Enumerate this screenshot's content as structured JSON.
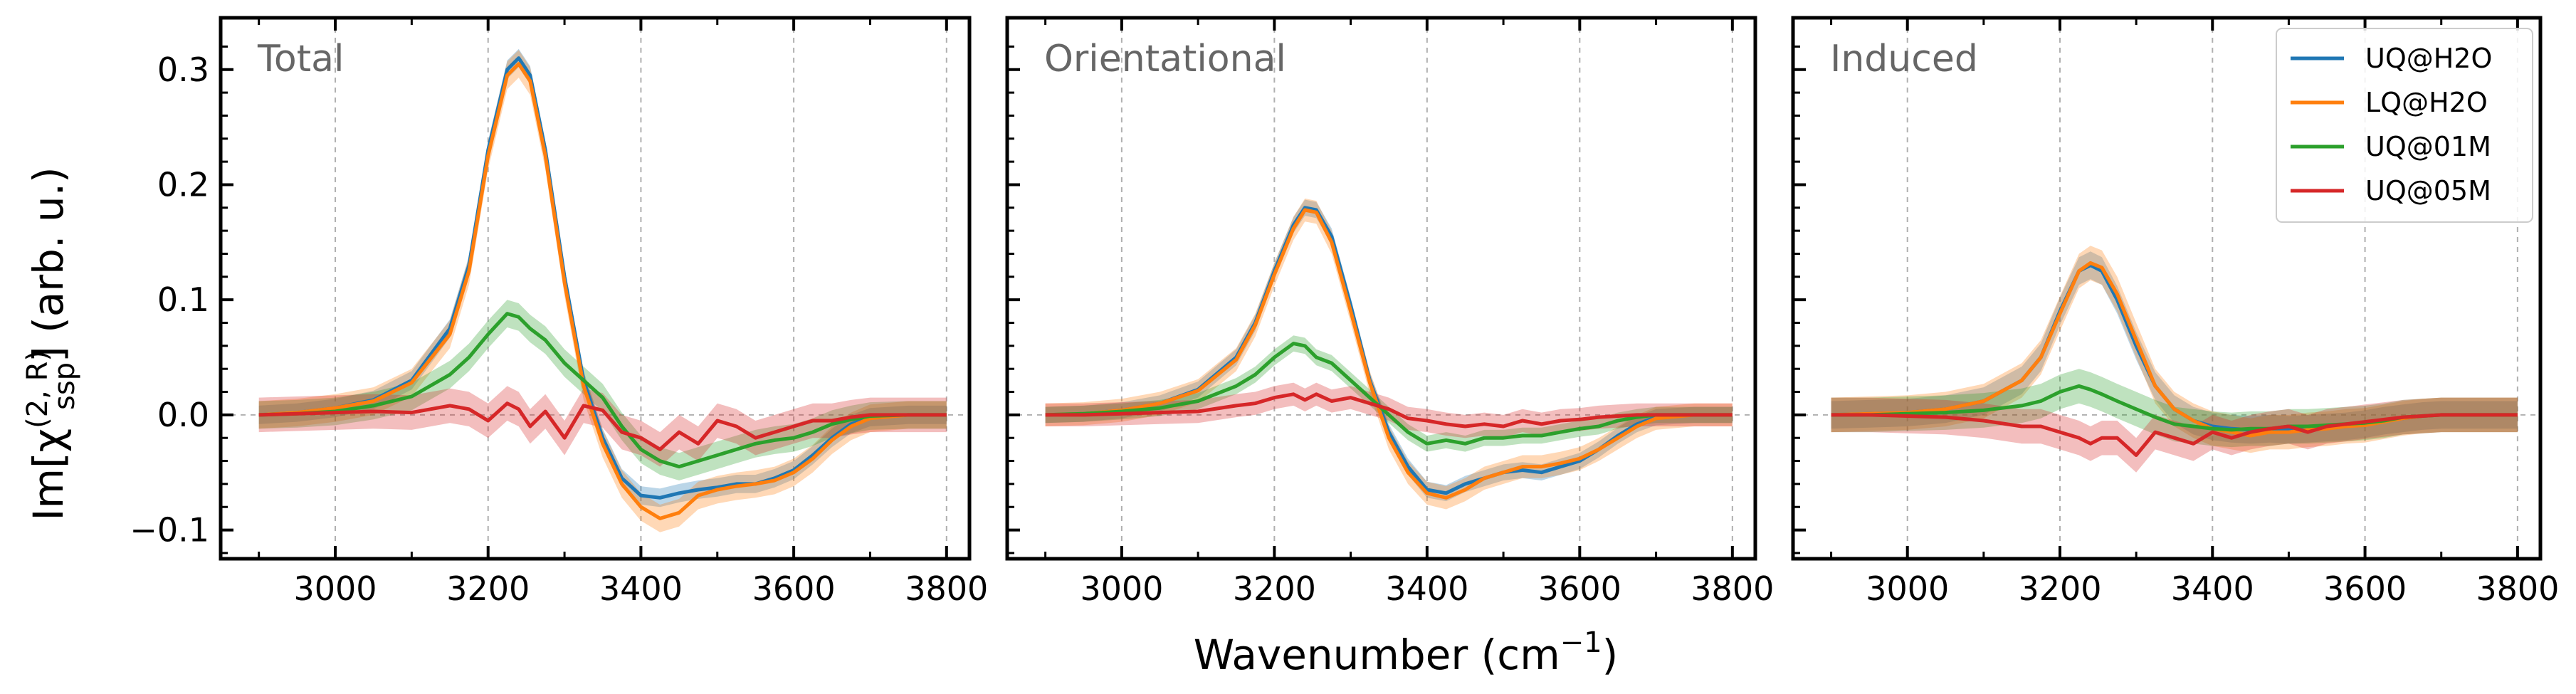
{
  "chart_data": {
    "type": "line",
    "ylabel": "Im[χ(2, R)ssp] (arb. u.)",
    "ylabel_parts": {
      "main": "Im[χ",
      "sup": "(2, R)",
      "sub": "ssp",
      "end": "] (arb. u.)"
    },
    "xlabel": "Wavenumber (cm⁻¹)",
    "xlabel_parts": {
      "main": "Wavenumber (cm",
      "sup": "−1",
      "end": ")"
    },
    "xlim": [
      2850,
      3830
    ],
    "ylim": [
      -0.125,
      0.345
    ],
    "xticks": [
      3000,
      3200,
      3400,
      3600,
      3800
    ],
    "xtick_labels": [
      "3000",
      "3200",
      "3400",
      "3600",
      "3800"
    ],
    "yticks": [
      -0.1,
      0.0,
      0.1,
      0.2,
      0.3
    ],
    "ytick_labels": [
      "−0.1",
      "0.0",
      "0.1",
      "0.2",
      "0.3"
    ],
    "x": [
      2900,
      2950,
      3000,
      3050,
      3100,
      3150,
      3175,
      3200,
      3225,
      3240,
      3255,
      3275,
      3300,
      3325,
      3350,
      3375,
      3400,
      3425,
      3450,
      3475,
      3500,
      3525,
      3550,
      3575,
      3600,
      3625,
      3650,
      3675,
      3700,
      3750,
      3800
    ],
    "legend": {
      "position": "top-right",
      "entries": [
        {
          "label": "UQ@H2O",
          "color": "#1f77b4"
        },
        {
          "label": "LQ@H2O",
          "color": "#ff7f0e"
        },
        {
          "label": "UQ@01M",
          "color": "#2ca02c"
        },
        {
          "label": "UQ@05M",
          "color": "#d62728"
        }
      ]
    },
    "panels": [
      {
        "title": "Total",
        "series": [
          {
            "name": "UQ@H2O",
            "color": "#1f77b4",
            "band": 0.008,
            "values": [
              0,
              0.002,
              0.006,
              0.013,
              0.03,
              0.075,
              0.13,
              0.23,
              0.3,
              0.31,
              0.295,
              0.23,
              0.12,
              0.03,
              -0.02,
              -0.055,
              -0.07,
              -0.072,
              -0.068,
              -0.065,
              -0.063,
              -0.06,
              -0.06,
              -0.055,
              -0.048,
              -0.035,
              -0.02,
              -0.008,
              -0.002,
              0,
              0
            ]
          },
          {
            "name": "LQ@H2O",
            "color": "#ff7f0e",
            "band": 0.012,
            "values": [
              0,
              0.002,
              0.006,
              0.012,
              0.028,
              0.07,
              0.125,
              0.225,
              0.295,
              0.305,
              0.29,
              0.225,
              0.115,
              0.025,
              -0.025,
              -0.06,
              -0.08,
              -0.09,
              -0.085,
              -0.07,
              -0.065,
              -0.062,
              -0.06,
              -0.057,
              -0.05,
              -0.038,
              -0.022,
              -0.01,
              -0.003,
              0,
              0
            ]
          },
          {
            "name": "UQ@01M",
            "color": "#2ca02c",
            "band": 0.012,
            "values": [
              0,
              0.001,
              0.003,
              0.008,
              0.016,
              0.035,
              0.05,
              0.07,
              0.088,
              0.085,
              0.075,
              0.065,
              0.045,
              0.03,
              0.015,
              -0.01,
              -0.03,
              -0.04,
              -0.045,
              -0.04,
              -0.035,
              -0.03,
              -0.025,
              -0.022,
              -0.02,
              -0.015,
              -0.008,
              -0.004,
              -0.001,
              0,
              0
            ]
          },
          {
            "name": "UQ@05M",
            "color": "#d62728",
            "band": 0.015,
            "values": [
              0,
              0.001,
              0.002,
              0.003,
              0.002,
              0.008,
              0.005,
              -0.005,
              0.01,
              0.005,
              -0.01,
              0.003,
              -0.02,
              0.008,
              0.004,
              -0.015,
              -0.02,
              -0.03,
              -0.015,
              -0.025,
              -0.005,
              -0.01,
              -0.02,
              -0.015,
              -0.01,
              -0.005,
              -0.005,
              -0.002,
              0,
              0,
              0
            ]
          }
        ]
      },
      {
        "title": "Orientational",
        "series": [
          {
            "name": "UQ@H2O",
            "color": "#1f77b4",
            "band": 0.007,
            "values": [
              0,
              0.001,
              0.004,
              0.01,
              0.022,
              0.05,
              0.08,
              0.125,
              0.165,
              0.18,
              0.178,
              0.155,
              0.095,
              0.03,
              -0.015,
              -0.045,
              -0.065,
              -0.068,
              -0.06,
              -0.055,
              -0.05,
              -0.048,
              -0.05,
              -0.045,
              -0.04,
              -0.03,
              -0.018,
              -0.008,
              -0.002,
              0,
              0
            ]
          },
          {
            "name": "LQ@H2O",
            "color": "#ff7f0e",
            "band": 0.01,
            "values": [
              0,
              0.001,
              0.004,
              0.01,
              0.021,
              0.048,
              0.078,
              0.122,
              0.162,
              0.178,
              0.176,
              0.15,
              0.09,
              0.028,
              -0.02,
              -0.05,
              -0.068,
              -0.072,
              -0.065,
              -0.055,
              -0.05,
              -0.045,
              -0.045,
              -0.042,
              -0.038,
              -0.03,
              -0.02,
              -0.01,
              -0.003,
              0,
              0
            ]
          },
          {
            "name": "UQ@01M",
            "color": "#2ca02c",
            "band": 0.007,
            "values": [
              0,
              0.001,
              0.003,
              0.006,
              0.012,
              0.025,
              0.035,
              0.05,
              0.062,
              0.06,
              0.05,
              0.045,
              0.03,
              0.015,
              0,
              -0.015,
              -0.025,
              -0.022,
              -0.025,
              -0.02,
              -0.02,
              -0.018,
              -0.018,
              -0.015,
              -0.012,
              -0.01,
              -0.005,
              -0.002,
              0,
              0,
              0
            ]
          },
          {
            "name": "UQ@05M",
            "color": "#d62728",
            "band": 0.01,
            "values": [
              0,
              0,
              0.001,
              0.002,
              0.003,
              0.008,
              0.01,
              0.015,
              0.018,
              0.013,
              0.018,
              0.012,
              0.015,
              0.01,
              0.005,
              -0.003,
              -0.005,
              -0.008,
              -0.01,
              -0.008,
              -0.01,
              -0.005,
              -0.008,
              -0.005,
              -0.004,
              -0.002,
              -0.001,
              0,
              0,
              0,
              0
            ]
          }
        ]
      },
      {
        "title": "Induced",
        "series": [
          {
            "name": "UQ@H2O",
            "color": "#1f77b4",
            "band": 0.012,
            "values": [
              0,
              0.001,
              0.002,
              0.005,
              0.012,
              0.03,
              0.05,
              0.09,
              0.125,
              0.13,
              0.125,
              0.1,
              0.06,
              0.025,
              0.005,
              -0.005,
              -0.01,
              -0.012,
              -0.013,
              -0.012,
              -0.013,
              -0.012,
              -0.011,
              -0.01,
              -0.008,
              -0.005,
              -0.003,
              -0.001,
              0,
              0,
              0
            ]
          },
          {
            "name": "LQ@H2O",
            "color": "#ff7f0e",
            "band": 0.015,
            "values": [
              0,
              0.001,
              0.002,
              0.005,
              0.012,
              0.03,
              0.05,
              0.088,
              0.125,
              0.132,
              0.128,
              0.105,
              0.065,
              0.025,
              0.005,
              -0.005,
              -0.012,
              -0.015,
              -0.018,
              -0.015,
              -0.015,
              -0.013,
              -0.012,
              -0.01,
              -0.009,
              -0.006,
              -0.003,
              -0.001,
              0,
              0,
              0
            ]
          },
          {
            "name": "UQ@01M",
            "color": "#2ca02c",
            "band": 0.015,
            "values": [
              0,
              0,
              0.001,
              0.002,
              0.004,
              0.008,
              0.012,
              0.02,
              0.025,
              0.022,
              0.018,
              0.012,
              0.005,
              -0.002,
              -0.008,
              -0.01,
              -0.012,
              -0.013,
              -0.012,
              -0.012,
              -0.01,
              -0.01,
              -0.009,
              -0.008,
              -0.007,
              -0.005,
              -0.002,
              -0.001,
              0,
              0,
              0
            ]
          },
          {
            "name": "UQ@05M",
            "color": "#d62728",
            "band": 0.015,
            "values": [
              0,
              0,
              -0.001,
              -0.002,
              -0.005,
              -0.01,
              -0.01,
              -0.015,
              -0.02,
              -0.025,
              -0.02,
              -0.02,
              -0.035,
              -0.015,
              -0.02,
              -0.025,
              -0.015,
              -0.02,
              -0.015,
              -0.012,
              -0.01,
              -0.015,
              -0.01,
              -0.008,
              -0.006,
              -0.004,
              -0.002,
              -0.001,
              0,
              0,
              0
            ]
          }
        ]
      }
    ]
  }
}
